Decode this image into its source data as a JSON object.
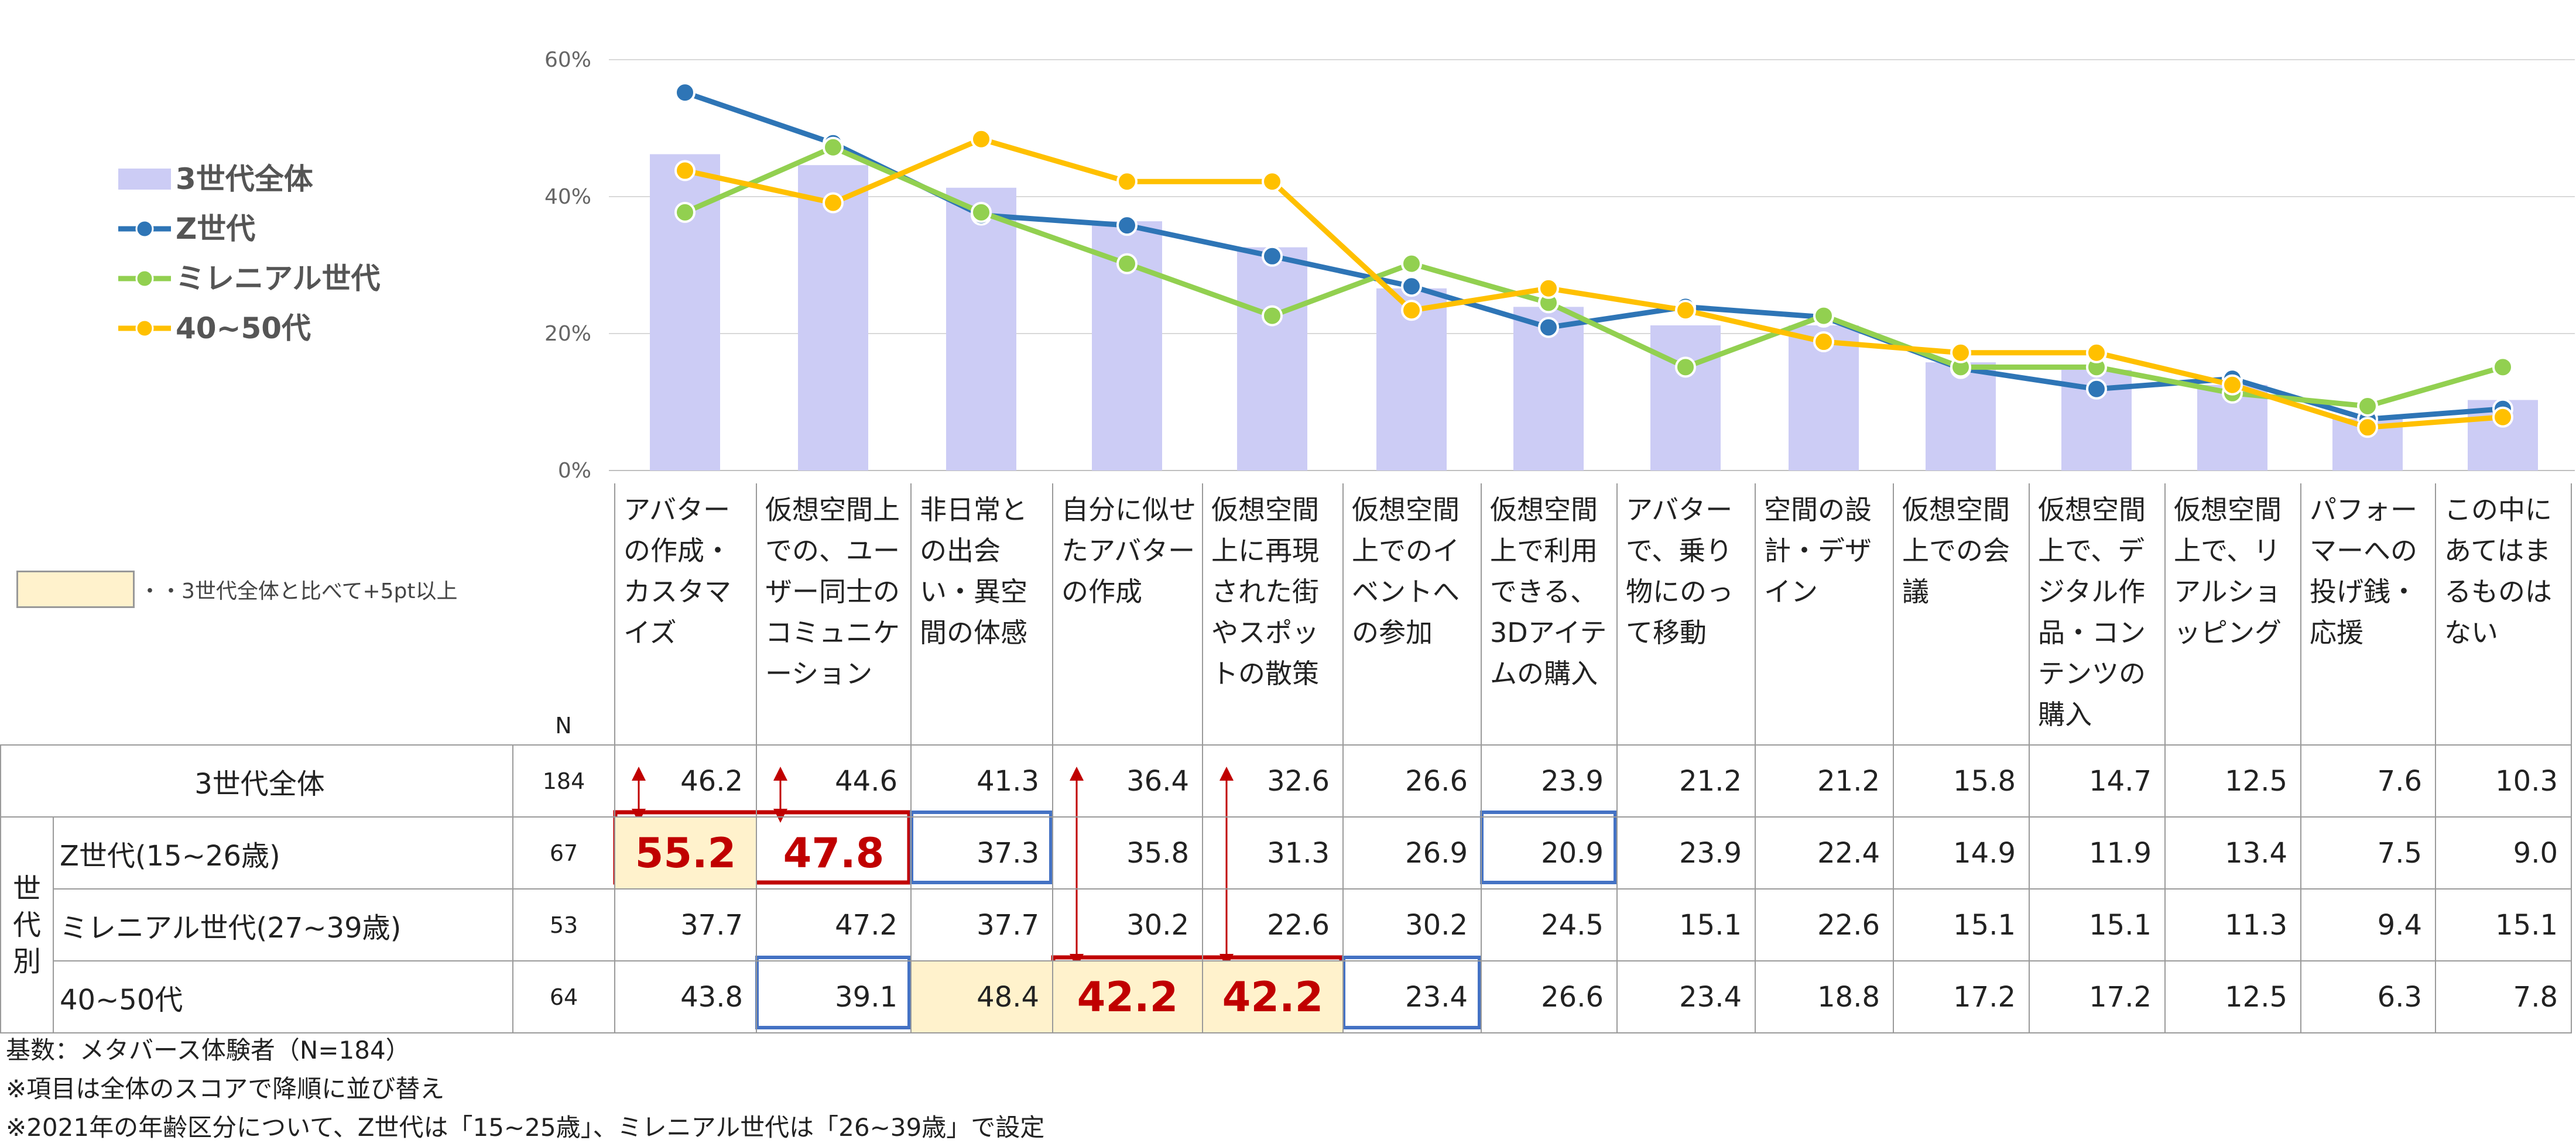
{
  "chart_data": {
    "type": "bar+line",
    "y_ticks": [
      "0%",
      "20%",
      "40%",
      "60%"
    ],
    "ylim": [
      0,
      60
    ],
    "grid": true,
    "legend_position": "left",
    "categories": [
      "アバターの作成・カスタマイズ",
      "仮想空間上での、ユーザー同士のコミュニケーション",
      "非日常との出会い・異空間の体感",
      "自分に似せたアバターの作成",
      "仮想空間上に再現された街やスポットの散策",
      "仮想空間上でのイベントへの参加",
      "仮想空間上で利用できる、3Dアイテムの購入",
      "アバターで、乗り物にのって移動",
      "空間の設計・デザイン",
      "仮想空間上での会議",
      "仮想空間上で、デジタル作品・コンテンツの購入",
      "仮想空間上で、リアルショッピング",
      "パフォーマーへの投げ銭・応援",
      "この中にあてはまるものはない"
    ],
    "series": [
      {
        "name": "3世代全体",
        "type": "bar",
        "color": "#ccccf5",
        "n": "184",
        "values": [
          "46.2",
          "44.6",
          "41.3",
          "36.4",
          "32.6",
          "26.6",
          "23.9",
          "21.2",
          "21.2",
          "15.8",
          "14.7",
          "12.5",
          "7.6",
          "10.3"
        ]
      },
      {
        "name": "Z世代",
        "type": "line",
        "color": "#2e75b6",
        "n": "67",
        "values": [
          "55.2",
          "47.8",
          "37.3",
          "35.8",
          "31.3",
          "26.9",
          "20.9",
          "23.9",
          "22.4",
          "14.9",
          "11.9",
          "13.4",
          "7.5",
          "9.0"
        ]
      },
      {
        "name": "ミレニアル世代",
        "type": "line",
        "color": "#92d050",
        "n": "53",
        "values": [
          "37.7",
          "47.2",
          "37.7",
          "30.2",
          "22.6",
          "30.2",
          "24.5",
          "15.1",
          "22.6",
          "15.1",
          "15.1",
          "11.3",
          "9.4",
          "15.1"
        ]
      },
      {
        "name": "40~50代",
        "type": "line",
        "color": "#ffc000",
        "n": "64",
        "values": [
          "43.8",
          "39.1",
          "48.4",
          "42.2",
          "42.2",
          "23.4",
          "26.6",
          "23.4",
          "18.8",
          "17.2",
          "17.2",
          "12.5",
          "6.3",
          "7.8"
        ]
      }
    ]
  },
  "table": {
    "n_header": "N",
    "group_label": "世代別",
    "row_labels": [
      "3世代全体",
      "Z世代(15~26歳)",
      "ミレニアル世代(27~39歳)",
      "40~50代"
    ],
    "highlight_note": "・・3世代全体と比べて+5pt以上"
  },
  "footnotes": [
    "基数：メタバース体験者（N=184）",
    "※項目は全体のスコアで降順に並び替え",
    "※2021年の年齢区分について、Z世代は「15~25歳」、ミレニアル世代は「26~39歳」で設定"
  ],
  "colors": {
    "bar": "#ccccf5",
    "z": "#2e75b6",
    "millennial": "#92d050",
    "older": "#ffc000",
    "emphasis": "#c00000",
    "outline": "#4472c4",
    "highlight": "#fff2cc"
  }
}
